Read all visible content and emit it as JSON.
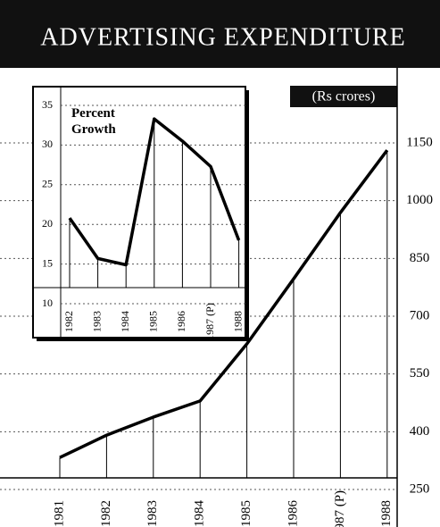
{
  "chart_data": [
    {
      "type": "line",
      "title": "ADVERTISING EXPENDITURE",
      "unit_label": "(Rs crores)",
      "categories": [
        "1981",
        "1982",
        "1983",
        "1984",
        "1985",
        "1986",
        "1987 (P)",
        "1988"
      ],
      "values": [
        333,
        391,
        438,
        480,
        628,
        797,
        969,
        1131
      ],
      "color": "#000000",
      "ylim": [
        250,
        1150
      ],
      "yticks": [
        250,
        400,
        550,
        700,
        850,
        1000,
        1150
      ],
      "grid": true
    },
    {
      "type": "line",
      "title": "Percent Growth",
      "categories": [
        "1982",
        "1983",
        "1984",
        "1985",
        "1986",
        "1987 (P)",
        "1988"
      ],
      "values": [
        20.8,
        15.7,
        14.9,
        33.3,
        30.5,
        27.3,
        18
      ],
      "color": "#000000",
      "ylim": [
        10,
        35
      ],
      "yticks": [
        10,
        15,
        20,
        25,
        30,
        35
      ],
      "grid": true
    }
  ]
}
